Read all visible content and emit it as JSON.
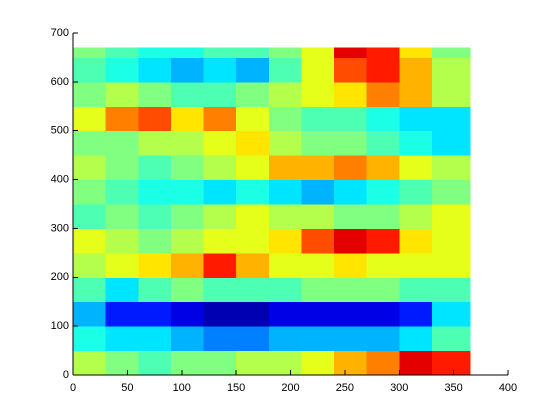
{
  "chart_data": {
    "type": "heatmap",
    "colormap": "jet",
    "clim": [
      0,
      1
    ],
    "x": [
      0,
      30,
      60,
      90,
      120,
      150,
      180,
      210,
      240,
      270,
      300,
      330,
      365
    ],
    "y": [
      0,
      50,
      100,
      150,
      200,
      250,
      300,
      350,
      400,
      450,
      500,
      550,
      600,
      650,
      670
    ],
    "z": [
      [
        0.55,
        0.5,
        0.45,
        0.5,
        0.5,
        0.55,
        0.55,
        0.6,
        0.7,
        0.75,
        0.9,
        0.85
      ],
      [
        0.4,
        0.35,
        0.35,
        0.3,
        0.25,
        0.25,
        0.3,
        0.3,
        0.3,
        0.3,
        0.35,
        0.45
      ],
      [
        0.3,
        0.15,
        0.15,
        0.1,
        0.05,
        0.05,
        0.1,
        0.1,
        0.1,
        0.1,
        0.15,
        0.35
      ],
      [
        0.45,
        0.35,
        0.45,
        0.5,
        0.45,
        0.45,
        0.45,
        0.5,
        0.5,
        0.5,
        0.45,
        0.45
      ],
      [
        0.55,
        0.6,
        0.65,
        0.7,
        0.85,
        0.7,
        0.6,
        0.6,
        0.65,
        0.6,
        0.6,
        0.6
      ],
      [
        0.6,
        0.55,
        0.5,
        0.55,
        0.6,
        0.6,
        0.65,
        0.8,
        0.9,
        0.85,
        0.65,
        0.6
      ],
      [
        0.45,
        0.5,
        0.45,
        0.5,
        0.55,
        0.6,
        0.55,
        0.55,
        0.5,
        0.5,
        0.55,
        0.6
      ],
      [
        0.5,
        0.45,
        0.4,
        0.4,
        0.35,
        0.4,
        0.35,
        0.3,
        0.35,
        0.4,
        0.45,
        0.5
      ],
      [
        0.55,
        0.5,
        0.45,
        0.5,
        0.55,
        0.6,
        0.7,
        0.7,
        0.75,
        0.7,
        0.6,
        0.55
      ],
      [
        0.5,
        0.5,
        0.55,
        0.55,
        0.6,
        0.65,
        0.55,
        0.5,
        0.5,
        0.45,
        0.4,
        0.35
      ],
      [
        0.6,
        0.75,
        0.8,
        0.65,
        0.75,
        0.6,
        0.5,
        0.45,
        0.45,
        0.4,
        0.35,
        0.35
      ],
      [
        0.5,
        0.55,
        0.5,
        0.45,
        0.45,
        0.5,
        0.55,
        0.6,
        0.65,
        0.75,
        0.7,
        0.55
      ],
      [
        0.45,
        0.4,
        0.35,
        0.3,
        0.35,
        0.3,
        0.45,
        0.6,
        0.8,
        0.85,
        0.7,
        0.55
      ],
      [
        0.5,
        0.45,
        0.4,
        0.4,
        0.45,
        0.45,
        0.5,
        0.6,
        0.9,
        0.85,
        0.65,
        0.5
      ]
    ],
    "xlim": [
      0,
      400
    ],
    "xticks": [
      0,
      50,
      100,
      150,
      200,
      250,
      300,
      350,
      400
    ],
    "ylim": [
      0,
      700
    ],
    "yticks": [
      0,
      100,
      200,
      300,
      400,
      500,
      600,
      700
    ]
  }
}
